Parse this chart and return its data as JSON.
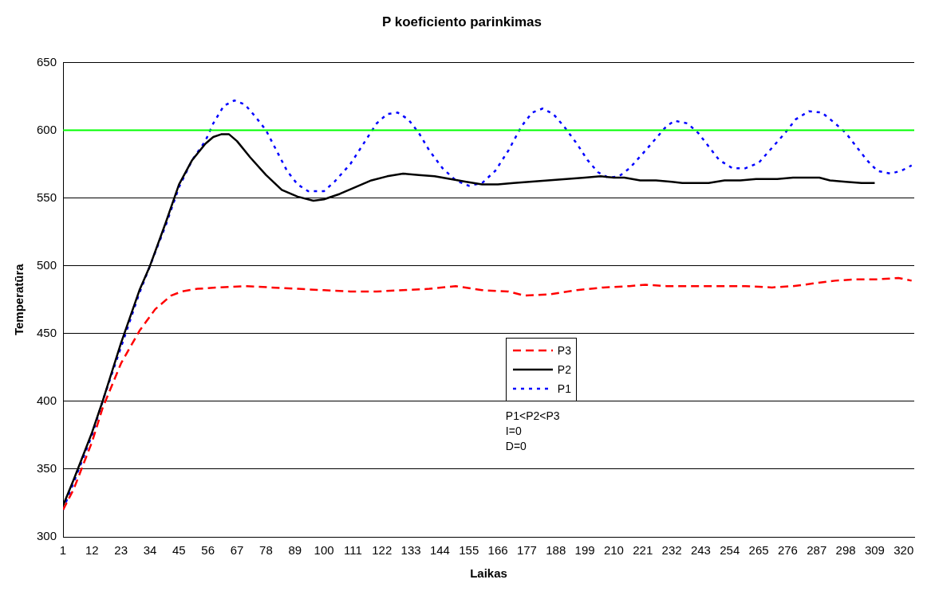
{
  "chart_data": {
    "type": "line",
    "title": "P koeficiento parinkimas",
    "xlabel": "Laikas",
    "ylabel": "Temperatūra",
    "xlim": [
      1,
      324
    ],
    "xticks": [
      1,
      12,
      23,
      34,
      45,
      56,
      67,
      78,
      89,
      100,
      111,
      122,
      133,
      144,
      155,
      166,
      177,
      188,
      199,
      210,
      221,
      232,
      243,
      254,
      265,
      276,
      287,
      298,
      309,
      320
    ],
    "ylim": [
      300,
      650
    ],
    "yticks": [
      300,
      350,
      400,
      450,
      500,
      550,
      600,
      650
    ],
    "grid": "y",
    "legend": "center",
    "marker": "none",
    "ref_lines": [
      {
        "axis": "y",
        "value": 600,
        "color": "#00ff00",
        "line_style": "solid"
      }
    ],
    "annotations": [
      "P1<P2<P3",
      "I=0",
      "D=0"
    ],
    "series": [
      {
        "name": "P3",
        "color": "#ff0000",
        "line_style": "dashed",
        "x": [
          1,
          5,
          12,
          16,
          23,
          30,
          36,
          42,
          46,
          52,
          60,
          70,
          80,
          90,
          100,
          110,
          120,
          130,
          140,
          150,
          160,
          170,
          176,
          186,
          196,
          206,
          216,
          222,
          230,
          240,
          250,
          260,
          270,
          278,
          286,
          294,
          302,
          310,
          318,
          323
        ],
        "values": [
          320,
          335,
          370,
          395,
          428,
          452,
          468,
          478,
          481,
          483,
          484,
          485,
          484,
          483,
          482,
          481,
          481,
          482,
          483,
          485,
          482,
          481,
          478,
          479,
          482,
          484,
          485,
          486,
          485,
          485,
          485,
          485,
          484,
          485,
          487,
          489,
          490,
          490,
          491,
          489
        ]
      },
      {
        "name": "P2",
        "color": "#000000",
        "line_style": "solid",
        "x": [
          1,
          5,
          12,
          16,
          23,
          30,
          34,
          40,
          45,
          50,
          55,
          58,
          61,
          64,
          67,
          72,
          78,
          84,
          90,
          96,
          100,
          106,
          112,
          118,
          124,
          130,
          136,
          142,
          148,
          154,
          160,
          166,
          172,
          178,
          185,
          192,
          199,
          205,
          210,
          214,
          220,
          226,
          232,
          236,
          246,
          252,
          258,
          264,
          272,
          278,
          288,
          292,
          298,
          304,
          309
        ],
        "values": [
          323,
          342,
          377,
          400,
          443,
          482,
          500,
          532,
          560,
          578,
          590,
          595,
          597,
          597,
          592,
          580,
          567,
          556,
          551,
          548,
          549,
          553,
          558,
          563,
          566,
          568,
          567,
          566,
          564,
          562,
          560,
          560,
          561,
          562,
          563,
          564,
          565,
          566,
          565,
          565,
          563,
          563,
          562,
          561,
          561,
          563,
          563,
          564,
          564,
          565,
          565,
          563,
          562,
          561,
          561
        ]
      },
      {
        "name": "P1",
        "color": "#0000ff",
        "line_style": "dotted",
        "x": [
          1,
          5,
          12,
          16,
          23,
          30,
          34,
          40,
          45,
          50,
          55,
          58,
          62,
          66,
          70,
          74,
          78,
          82,
          86,
          90,
          94,
          100,
          104,
          110,
          116,
          120,
          124,
          128,
          132,
          136,
          140,
          145,
          150,
          155,
          160,
          165,
          170,
          175,
          179,
          183,
          187,
          191,
          196,
          200,
          204,
          208,
          212,
          216,
          222,
          226,
          230,
          233,
          238,
          242,
          246,
          250,
          255,
          260,
          265,
          270,
          275,
          279,
          284,
          289,
          294,
          298,
          302,
          306,
          310,
          315,
          319,
          323
        ],
        "values": [
          320,
          340,
          375,
          400,
          440,
          480,
          500,
          530,
          558,
          578,
          592,
          605,
          618,
          622,
          619,
          610,
          600,
          585,
          570,
          560,
          555,
          555,
          562,
          575,
          593,
          605,
          612,
          613,
          608,
          598,
          585,
          572,
          563,
          559,
          561,
          570,
          585,
          603,
          613,
          616,
          612,
          603,
          590,
          578,
          569,
          565,
          566,
          572,
          585,
          594,
          603,
          607,
          605,
          598,
          588,
          578,
          572,
          572,
          576,
          587,
          598,
          608,
          614,
          613,
          605,
          598,
          588,
          578,
          570,
          568,
          570,
          574
        ]
      }
    ]
  }
}
